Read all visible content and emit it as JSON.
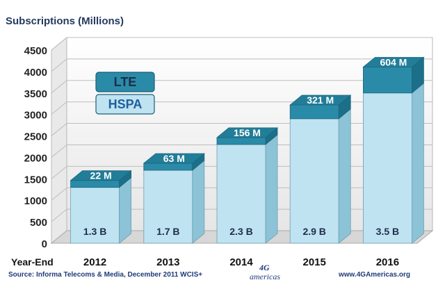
{
  "chart_data": {
    "type": "bar",
    "title": "Subscriptions (Millions)",
    "xlabel": "Year-End",
    "ylabel": "",
    "ylim": [
      0,
      4500
    ],
    "yticks": [
      0,
      500,
      1000,
      1500,
      2000,
      2500,
      3000,
      3500,
      4000,
      4500
    ],
    "categories": [
      "2012",
      "2013",
      "2014",
      "2015",
      "2016"
    ],
    "stacked": true,
    "series": [
      {
        "name": "HSPA",
        "color": "#bfe3f0",
        "values": [
          1300,
          1700,
          2300,
          2900,
          3500
        ],
        "labels": [
          "1.3 B",
          "1.7 B",
          "2.3 B",
          "2.9 B",
          "3.5 B"
        ]
      },
      {
        "name": "LTE",
        "color": "#2a8ba8",
        "values": [
          22,
          63,
          156,
          321,
          604
        ],
        "labels": [
          "22 M",
          "63 M",
          "156 M",
          "321 M",
          "604 M"
        ]
      }
    ],
    "legend": [
      {
        "label": "LTE",
        "color": "#2a8ba8"
      },
      {
        "label": "HSPA",
        "color": "#bfe3f0"
      }
    ]
  },
  "footer": {
    "source": "Source: Informa Telecoms & Media, December 2011 WCIS+",
    "url": "www.4GAmericas.org",
    "logo_top": "4G",
    "logo_bottom": "americas"
  }
}
